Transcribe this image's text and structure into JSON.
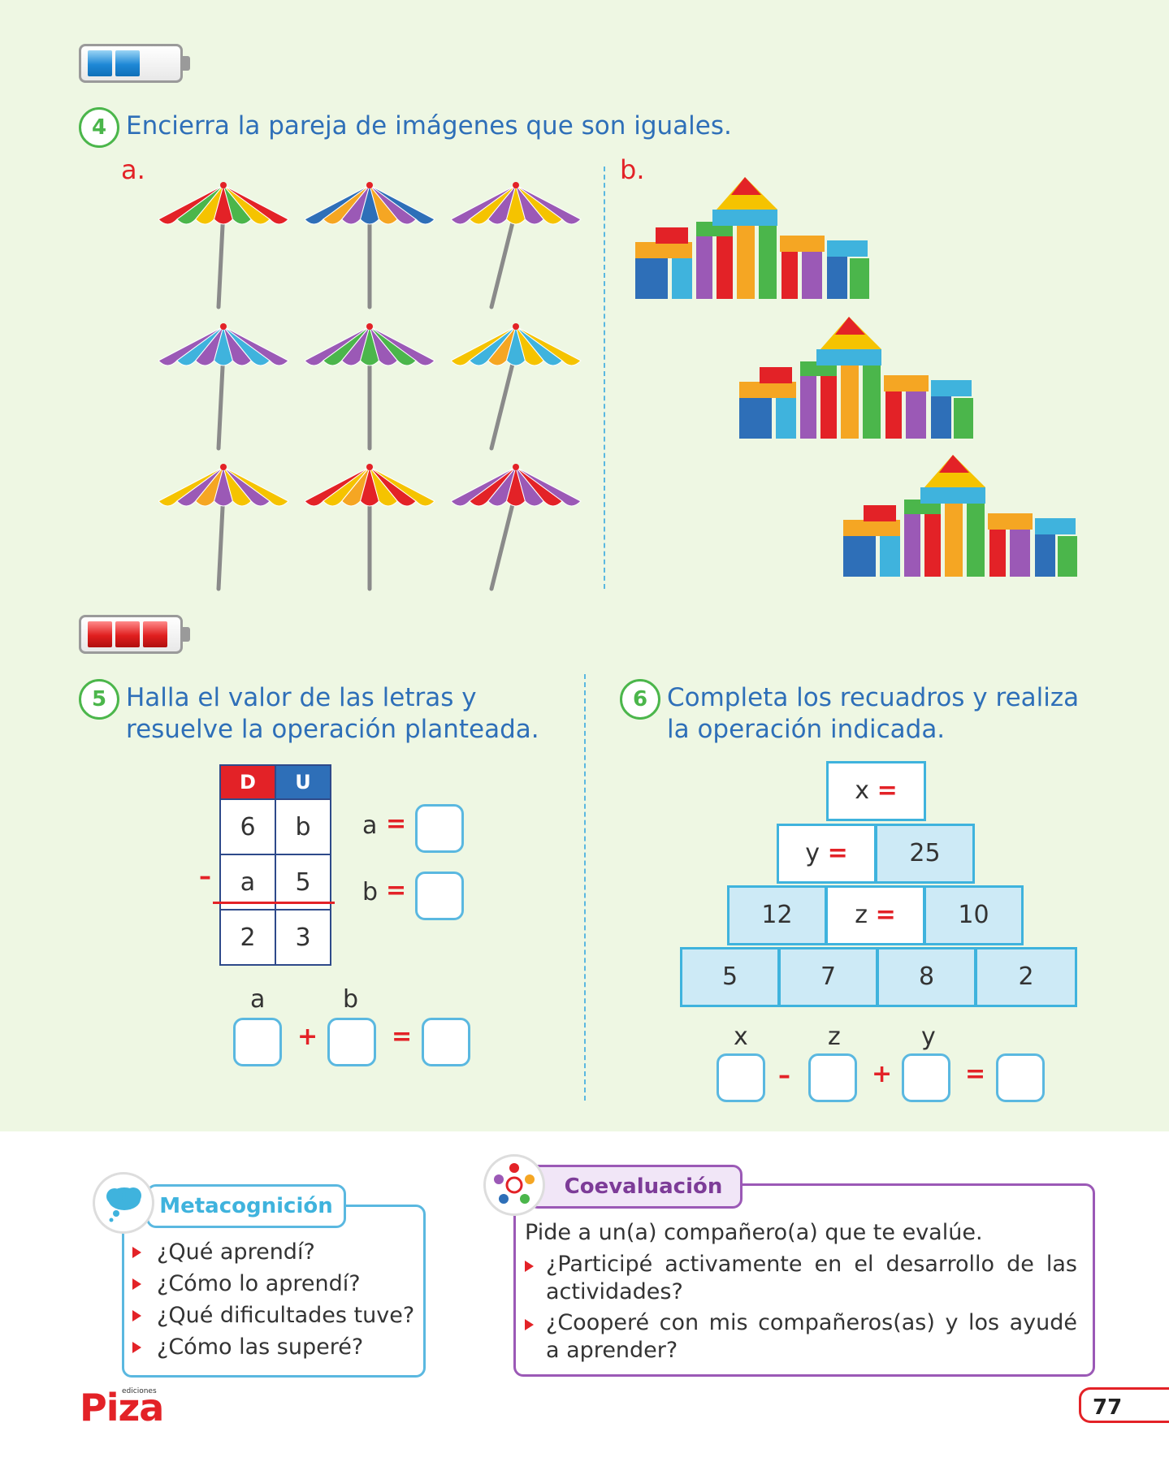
{
  "q4": {
    "number": "4",
    "text": "Encierra la pareja de imágenes que son iguales.",
    "label_a": "a.",
    "label_b": "b."
  },
  "q5": {
    "number": "5",
    "text_line1": "Halla el valor de las letras y",
    "text_line2": "resuelve la operación planteada.",
    "table": {
      "headers": [
        "D",
        "U"
      ],
      "rows": [
        [
          "6",
          "b"
        ],
        [
          "a",
          "5"
        ],
        [
          "2",
          "3"
        ]
      ],
      "operator": "–"
    },
    "a_label": "a",
    "b_label": "b",
    "equals": "=",
    "plus": "+",
    "sum_label_a": "a",
    "sum_label_b": "b"
  },
  "q6": {
    "number": "6",
    "text_line1": "Completa los recuadros y realiza",
    "text_line2": "la operación indicada.",
    "pyramid": {
      "top": "x",
      "row2": [
        "y",
        "25"
      ],
      "row3": [
        "12",
        "z",
        "10"
      ],
      "row4": [
        "5",
        "7",
        "8",
        "2"
      ]
    },
    "eq_labels": [
      "x",
      "z",
      "y"
    ],
    "minus": "–",
    "plus": "+",
    "equals": "="
  },
  "metacognicion": {
    "title": "Metacognición",
    "items": [
      "¿Qué aprendí?",
      "¿Cómo lo aprendí?",
      "¿Qué dificultades tuve?",
      "¿Cómo las superé?"
    ]
  },
  "coevaluacion": {
    "title": "Coevaluación",
    "intro": "Pide a un(a) compañero(a) que te evalúe.",
    "item1_line1": "¿Participé activamente en el desarrollo de las",
    "item1_line2": "actividades?",
    "item2_line1": "¿Cooperé con mis compañeros(as) y los ayudé",
    "item2_line2": "a aprender?"
  },
  "footer": {
    "logo": "Piza",
    "logo_sub": "ediciones",
    "page_number": "77"
  },
  "colors": {
    "accent_blue": "#2e6fb8",
    "accent_red": "#e32227",
    "accent_green": "#4bb64b",
    "light_blue": "#5ab8e0",
    "purple": "#9b59b6"
  },
  "icons": [
    "battery-blue-icon",
    "battery-red-icon",
    "umbrella-icon",
    "blocks-castle-icon",
    "thought-cloud-icon",
    "group-people-icon"
  ]
}
